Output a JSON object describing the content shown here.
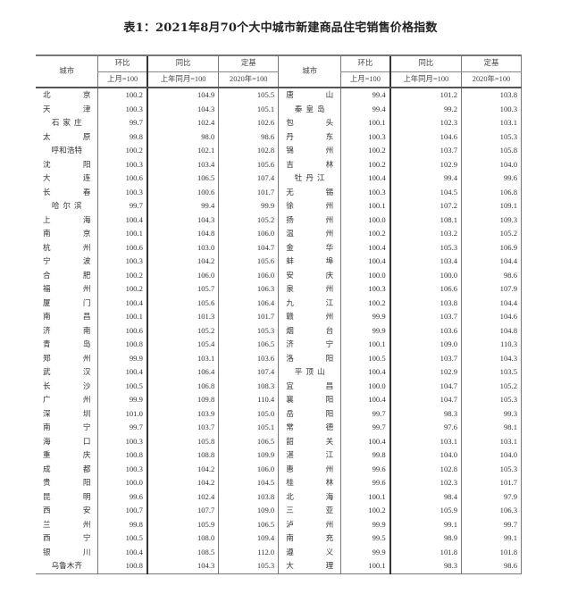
{
  "title": "表1：2021年8月70个大中城市新建商品住宅销售价格指数",
  "headers": {
    "city": "城市",
    "mom": "环比",
    "yoy": "同比",
    "base": "定基",
    "mom_sub": "上月=100",
    "yoy_sub": "上年同月=100",
    "base_sub": "2020年=100"
  },
  "left_rows": [
    [
      "北京",
      "100.2",
      "104.9",
      "105.5"
    ],
    [
      "天津",
      "100.3",
      "104.3",
      "105.1"
    ],
    [
      "石家庄",
      "99.7",
      "102.4",
      "102.6"
    ],
    [
      "太原",
      "99.8",
      "98.0",
      "98.6"
    ],
    [
      "呼和浩特",
      "100.2",
      "102.1",
      "102.8"
    ],
    [
      "沈阳",
      "100.3",
      "103.4",
      "105.6"
    ],
    [
      "大连",
      "100.6",
      "106.5",
      "107.4"
    ],
    [
      "长春",
      "100.3",
      "100.6",
      "101.7"
    ],
    [
      "哈尔滨",
      "99.7",
      "99.4",
      "99.9"
    ],
    [
      "上海",
      "100.4",
      "104.3",
      "105.2"
    ],
    [
      "南京",
      "100.1",
      "104.8",
      "106.0"
    ],
    [
      "杭州",
      "100.6",
      "103.0",
      "104.7"
    ],
    [
      "宁波",
      "100.3",
      "104.2",
      "105.6"
    ],
    [
      "合肥",
      "100.2",
      "106.0",
      "106.0"
    ],
    [
      "福州",
      "100.2",
      "105.7",
      "106.3"
    ],
    [
      "厦门",
      "100.4",
      "105.6",
      "106.4"
    ],
    [
      "南昌",
      "100.1",
      "101.3",
      "101.7"
    ],
    [
      "济南",
      "100.6",
      "105.2",
      "105.3"
    ],
    [
      "青岛",
      "100.8",
      "105.4",
      "106.5"
    ],
    [
      "郑州",
      "99.9",
      "103.1",
      "103.6"
    ],
    [
      "武汉",
      "100.4",
      "106.4",
      "107.4"
    ],
    [
      "长沙",
      "100.5",
      "106.8",
      "108.3"
    ],
    [
      "广州",
      "99.9",
      "109.8",
      "110.4"
    ],
    [
      "深圳",
      "101.0",
      "103.9",
      "105.0"
    ],
    [
      "南宁",
      "99.7",
      "103.7",
      "105.1"
    ],
    [
      "海口",
      "100.3",
      "105.8",
      "106.5"
    ],
    [
      "重庆",
      "100.8",
      "108.8",
      "109.9"
    ],
    [
      "成都",
      "100.3",
      "104.2",
      "106.0"
    ],
    [
      "贵阳",
      "100.0",
      "104.2",
      "104.5"
    ],
    [
      "昆明",
      "99.6",
      "102.4",
      "103.8"
    ],
    [
      "西安",
      "100.7",
      "107.7",
      "109.0"
    ],
    [
      "兰州",
      "99.8",
      "105.9",
      "106.5"
    ],
    [
      "西宁",
      "100.5",
      "108.0",
      "109.4"
    ],
    [
      "银川",
      "100.4",
      "108.5",
      "112.0"
    ],
    [
      "乌鲁木齐",
      "100.8",
      "104.3",
      "105.3"
    ]
  ],
  "right_rows": [
    [
      "唐山",
      "99.4",
      "101.2",
      "103.8"
    ],
    [
      "秦皇岛",
      "99.4",
      "99.2",
      "100.3"
    ],
    [
      "包头",
      "100.1",
      "102.3",
      "103.1"
    ],
    [
      "丹东",
      "100.3",
      "104.6",
      "105.3"
    ],
    [
      "锦州",
      "100.2",
      "103.7",
      "105.8"
    ],
    [
      "吉林",
      "100.2",
      "102.9",
      "104.0"
    ],
    [
      "牡丹江",
      "100.4",
      "99.4",
      "99.6"
    ],
    [
      "无锡",
      "100.3",
      "104.5",
      "106.8"
    ],
    [
      "徐州",
      "100.1",
      "107.2",
      "109.1"
    ],
    [
      "扬州",
      "100.0",
      "108.1",
      "109.3"
    ],
    [
      "温州",
      "100.2",
      "103.2",
      "105.2"
    ],
    [
      "金华",
      "100.4",
      "105.3",
      "106.9"
    ],
    [
      "蚌埠",
      "100.4",
      "103.4",
      "104.4"
    ],
    [
      "安庆",
      "100.0",
      "100.0",
      "98.6"
    ],
    [
      "泉州",
      "100.3",
      "106.6",
      "107.9"
    ],
    [
      "九江",
      "100.2",
      "103.8",
      "104.4"
    ],
    [
      "赣州",
      "99.9",
      "103.7",
      "104.6"
    ],
    [
      "烟台",
      "99.9",
      "103.6",
      "104.8"
    ],
    [
      "济宁",
      "100.1",
      "109.0",
      "110.3"
    ],
    [
      "洛阳",
      "100.5",
      "103.7",
      "104.3"
    ],
    [
      "平顶山",
      "100.4",
      "102.9",
      "103.5"
    ],
    [
      "宜昌",
      "100.0",
      "104.7",
      "105.2"
    ],
    [
      "襄阳",
      "100.4",
      "104.7",
      "105.3"
    ],
    [
      "岳阳",
      "99.7",
      "98.3",
      "99.3"
    ],
    [
      "常德",
      "99.7",
      "97.6",
      "98.1"
    ],
    [
      "韶关",
      "100.4",
      "103.1",
      "103.1"
    ],
    [
      "湛江",
      "99.8",
      "104.0",
      "104.0"
    ],
    [
      "惠州",
      "99.6",
      "102.8",
      "105.3"
    ],
    [
      "桂林",
      "99.6",
      "102.3",
      "101.7"
    ],
    [
      "北海",
      "100.1",
      "98.4",
      "97.9"
    ],
    [
      "三亚",
      "100.2",
      "105.9",
      "106.3"
    ],
    [
      "泸州",
      "99.9",
      "99.1",
      "99.7"
    ],
    [
      "南充",
      "99.5",
      "98.9",
      "99.1"
    ],
    [
      "遵义",
      "99.9",
      "101.8",
      "101.8"
    ],
    [
      "大理",
      "100.1",
      "98.3",
      "98.6"
    ]
  ]
}
